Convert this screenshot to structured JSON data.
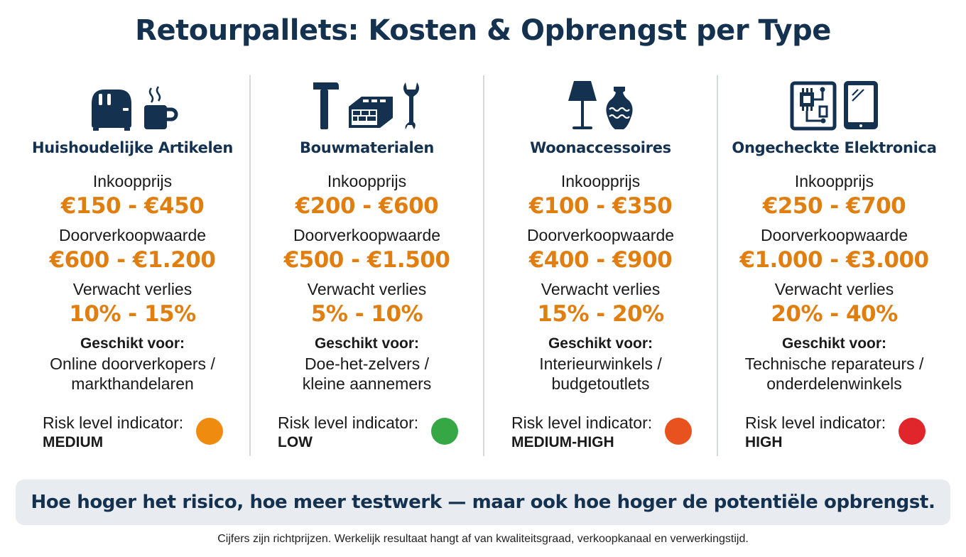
{
  "title": "Retourpallets: Kosten & Opbrengst per Type",
  "labels": {
    "purchase": "Inkoopprijs",
    "resale": "Doorverkoopwaarde",
    "loss": "Verwacht verlies",
    "suitable": "Geschikt voor:",
    "risk": "Risk level indicator:"
  },
  "colors": {
    "navy": "#14324f",
    "orange": "#e07e10",
    "divider": "#d5d9de",
    "banner_bg": "#e8ecf1"
  },
  "columns": [
    {
      "title": "Huishoudelijke Artikelen",
      "icons": [
        "toaster-icon",
        "mug-icon"
      ],
      "purchase": "€150 - €450",
      "resale": "€600 - €1.200",
      "loss": "10% - 15%",
      "suitable_1": "Online doorverkopers /",
      "suitable_2": "markthandelaren",
      "risk": "MEDIUM",
      "risk_color": "#ef8c10"
    },
    {
      "title": "Bouwmaterialen",
      "icons": [
        "hammer-icon",
        "brick-icon",
        "wrench-icon"
      ],
      "purchase": "€200 - €600",
      "resale": "€500 - €1.500",
      "loss": "5% - 10%",
      "suitable_1": "Doe-het-zelvers /",
      "suitable_2": "kleine aannemers",
      "risk": "LOW",
      "risk_color": "#35a845"
    },
    {
      "title": "Woonaccessoires",
      "icons": [
        "lamp-icon",
        "vase-icon"
      ],
      "purchase": "€100 - €350",
      "resale": "€400 - €900",
      "loss": "15% - 20%",
      "suitable_1": "Interieurwinkels /",
      "suitable_2": "budgetoutlets",
      "risk": "MEDIUM-HIGH",
      "risk_color": "#e8521f"
    },
    {
      "title": "Ongecheckte Elektronica",
      "icons": [
        "circuit-board-icon",
        "tablet-icon"
      ],
      "purchase": "€250 - €700",
      "resale": "€1.000 - €3.000",
      "loss": "20% - 40%",
      "suitable_1": "Technische reparateurs /",
      "suitable_2": "onderdelenwinkels",
      "risk": "HIGH",
      "risk_color": "#e0262a"
    }
  ],
  "banner": "Hoe hoger het risico, hoe meer testwerk — maar ook hoe hoger de potentiële opbrengst.",
  "footnote": "Cijfers zijn richtprijzen. Werkelijk resultaat hangt af van kwaliteitsgraad, verkoopkanaal en verwerkingstijd."
}
